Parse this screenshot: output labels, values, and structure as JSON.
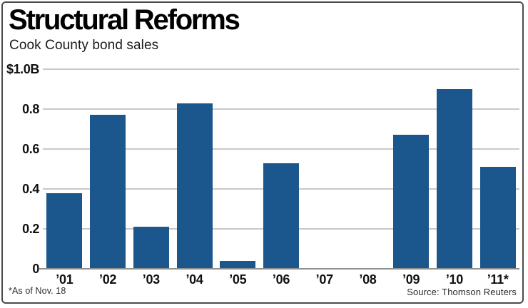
{
  "chart_data": {
    "type": "bar",
    "title": "Structural Reforms",
    "subtitle": "Cook County bond sales",
    "categories": [
      "’01",
      "’02",
      "’03",
      "’04",
      "’05",
      "’06",
      "’07",
      "’08",
      "’09",
      "’10",
      "’11*"
    ],
    "values": [
      0.38,
      0.77,
      0.21,
      0.83,
      0.04,
      0.53,
      0,
      0,
      0.67,
      0.9,
      0.51
    ],
    "ylim": [
      0,
      1.0
    ],
    "ytick_values": [
      1.0,
      0.8,
      0.6,
      0.4,
      0.2,
      0
    ],
    "ytick_labels": [
      "$1.0B",
      "0.8",
      "0.6",
      "0.4",
      "0.2",
      "0"
    ],
    "grid": "horizontal",
    "legend": "none",
    "bar_color": "#1b568c",
    "gridline_color": "#c9c9c9",
    "axis_color": "#8e8e8e",
    "footnote": "*As of Nov. 18",
    "source": "Source: Thomson Reuters"
  }
}
